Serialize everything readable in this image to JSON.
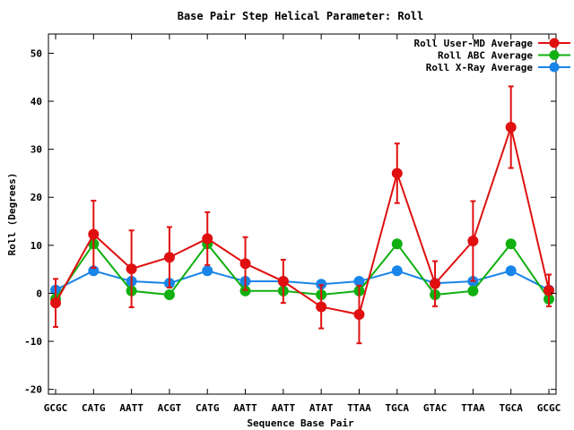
{
  "chart_data": {
    "type": "line",
    "title": "Base Pair Step Helical Parameter: Roll",
    "xlabel": "Sequence Base Pair",
    "ylabel": "Roll (Degrees)",
    "categories": [
      "GCGC",
      "CATG",
      "AATT",
      "ACGT",
      "CATG",
      "AATT",
      "AATT",
      "ATAT",
      "TTAA",
      "TGCA",
      "GTAC",
      "TTAA",
      "TGCA",
      "GCGC"
    ],
    "ylim": [
      -21,
      54
    ],
    "yticks": [
      -20,
      -10,
      0,
      10,
      20,
      30,
      40,
      50
    ],
    "grid": false,
    "legend": "top-right",
    "series": [
      {
        "name": "Roll User-MD Average",
        "color": "#e01010",
        "values": [
          -2,
          12.3,
          5.1,
          7.5,
          11.4,
          6.2,
          2.5,
          -2.8,
          -4.4,
          25,
          2,
          10.9,
          34.6,
          0.6
        ],
        "errors": [
          5,
          7,
          8,
          6.3,
          5.5,
          5.5,
          4.5,
          4.5,
          6,
          6.2,
          4.7,
          8.3,
          8.5,
          3.3
        ]
      },
      {
        "name": "Roll ABC Average",
        "color": "#10b010",
        "values": [
          -1.2,
          10.3,
          0.5,
          -0.3,
          10.3,
          0.5,
          0.5,
          -0.3,
          0.5,
          10.3,
          -0.3,
          0.5,
          10.3,
          -1.2
        ]
      },
      {
        "name": "Roll X-Ray Average",
        "color": "#1a85e8",
        "values": [
          0.7,
          4.7,
          2.5,
          2.1,
          4.7,
          2.5,
          2.5,
          1.9,
          2.5,
          4.7,
          2.1,
          2.5,
          4.7,
          0.7
        ]
      }
    ]
  }
}
